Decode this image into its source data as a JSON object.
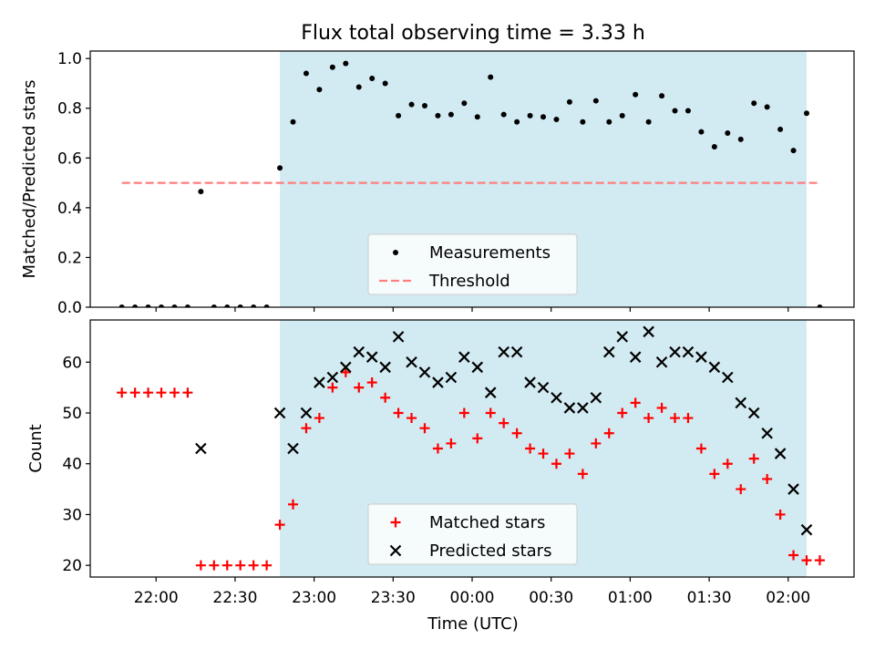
{
  "title": "Flux total observing time = 3.33 h",
  "colors": {
    "span": "#add8e6",
    "measurement": "#000000",
    "threshold": "#ff7f7f",
    "matched": "#ff0000",
    "predicted": "#000000"
  },
  "x_axis": {
    "label": "Time (UTC)",
    "ticks": [
      {
        "t": "2000-01-01T22:00",
        "label": "22:00"
      },
      {
        "t": "2000-01-01T22:30",
        "label": "22:30"
      },
      {
        "t": "2000-01-01T23:00",
        "label": "23:00"
      },
      {
        "t": "2000-01-01T23:30",
        "label": "23:30"
      },
      {
        "t": "2000-01-02T00:00",
        "label": "00:00"
      },
      {
        "t": "2000-01-02T00:30",
        "label": "00:30"
      },
      {
        "t": "2000-01-02T01:00",
        "label": "01:00"
      },
      {
        "t": "2000-01-02T01:30",
        "label": "01:30"
      },
      {
        "t": "2000-01-02T02:00",
        "label": "02:00"
      }
    ]
  },
  "chart_data": [
    {
      "type": "scatter",
      "ylabel": "Matched/Predicted stars",
      "xlim": [
        "2000-01-01T21:35",
        "2000-01-02T02:25"
      ],
      "ylim": [
        0,
        1.03
      ],
      "yticks": [
        {
          "v": 0.0,
          "label": "0.0"
        },
        {
          "v": 0.2,
          "label": "0.2"
        },
        {
          "v": 0.4,
          "label": "0.4"
        },
        {
          "v": 0.6,
          "label": "0.6"
        },
        {
          "v": 0.8,
          "label": "0.8"
        },
        {
          "v": 1.0,
          "label": "1.0"
        }
      ],
      "span": [
        "2000-01-01T22:47",
        "2000-01-02T02:07"
      ],
      "threshold": {
        "name": "Threshold",
        "y": 0.5,
        "x": [
          "2000-01-01T21:47",
          "2000-01-02T02:11"
        ]
      },
      "legend": {
        "position": "lower center",
        "entries": [
          "Measurements",
          "Threshold"
        ]
      },
      "series": [
        {
          "name": "Measurements",
          "x": [
            "2000-01-01T21:47",
            "2000-01-01T21:52",
            "2000-01-01T21:57",
            "2000-01-01T22:02",
            "2000-01-01T22:07",
            "2000-01-01T22:12",
            "2000-01-01T22:17",
            "2000-01-01T22:22",
            "2000-01-01T22:27",
            "2000-01-01T22:32",
            "2000-01-01T22:37",
            "2000-01-01T22:42",
            "2000-01-01T22:47",
            "2000-01-01T22:52",
            "2000-01-01T22:57",
            "2000-01-01T23:02",
            "2000-01-01T23:07",
            "2000-01-01T23:12",
            "2000-01-01T23:17",
            "2000-01-01T23:22",
            "2000-01-01T23:27",
            "2000-01-01T23:32",
            "2000-01-01T23:37",
            "2000-01-01T23:42",
            "2000-01-01T23:47",
            "2000-01-01T23:52",
            "2000-01-01T23:57",
            "2000-01-02T00:02",
            "2000-01-02T00:07",
            "2000-01-02T00:12",
            "2000-01-02T00:17",
            "2000-01-02T00:22",
            "2000-01-02T00:27",
            "2000-01-02T00:32",
            "2000-01-02T00:37",
            "2000-01-02T00:42",
            "2000-01-02T00:47",
            "2000-01-02T00:52",
            "2000-01-02T00:57",
            "2000-01-02T01:02",
            "2000-01-02T01:07",
            "2000-01-02T01:12",
            "2000-01-02T01:17",
            "2000-01-02T01:22",
            "2000-01-02T01:27",
            "2000-01-02T01:32",
            "2000-01-02T01:37",
            "2000-01-02T01:42",
            "2000-01-02T01:47",
            "2000-01-02T01:52",
            "2000-01-02T01:57",
            "2000-01-02T02:02",
            "2000-01-02T02:07",
            "2000-01-02T02:12"
          ],
          "y": [
            0,
            0,
            0,
            0,
            0,
            0,
            0.465,
            0,
            0,
            0,
            0,
            0,
            0.56,
            0.745,
            0.94,
            0.875,
            0.965,
            0.98,
            0.885,
            0.92,
            0.9,
            0.77,
            0.815,
            0.81,
            0.77,
            0.775,
            0.82,
            0.765,
            0.925,
            0.775,
            0.745,
            0.77,
            0.765,
            0.755,
            0.825,
            0.745,
            0.83,
            0.745,
            0.77,
            0.855,
            0.745,
            0.85,
            0.79,
            0.79,
            0.705,
            0.645,
            0.7,
            0.675,
            0.82,
            0.805,
            0.715,
            0.63,
            0.78,
            0
          ]
        }
      ]
    },
    {
      "type": "scatter",
      "ylabel": "Count",
      "xlabel": "Time (UTC)",
      "xlim": [
        "2000-01-01T21:35",
        "2000-01-02T02:25"
      ],
      "ylim": [
        17.7,
        68.3
      ],
      "yticks": [
        {
          "v": 20,
          "label": "20"
        },
        {
          "v": 30,
          "label": "30"
        },
        {
          "v": 40,
          "label": "40"
        },
        {
          "v": 50,
          "label": "50"
        },
        {
          "v": 60,
          "label": "60"
        }
      ],
      "span": [
        "2000-01-01T22:47",
        "2000-01-02T02:07"
      ],
      "legend": {
        "position": "lower center",
        "entries": [
          "Matched stars",
          "Predicted stars"
        ]
      },
      "series": [
        {
          "name": "Matched stars",
          "marker": "plus",
          "x": [
            "2000-01-01T21:47",
            "2000-01-01T21:52",
            "2000-01-01T21:57",
            "2000-01-01T22:02",
            "2000-01-01T22:07",
            "2000-01-01T22:12",
            "2000-01-01T22:17",
            "2000-01-01T22:22",
            "2000-01-01T22:27",
            "2000-01-01T22:32",
            "2000-01-01T22:37",
            "2000-01-01T22:42",
            "2000-01-01T22:47",
            "2000-01-01T22:52",
            "2000-01-01T22:57",
            "2000-01-01T23:02",
            "2000-01-01T23:07",
            "2000-01-01T23:12",
            "2000-01-01T23:17",
            "2000-01-01T23:22",
            "2000-01-01T23:27",
            "2000-01-01T23:32",
            "2000-01-01T23:37",
            "2000-01-01T23:42",
            "2000-01-01T23:47",
            "2000-01-01T23:52",
            "2000-01-01T23:57",
            "2000-01-02T00:02",
            "2000-01-02T00:07",
            "2000-01-02T00:12",
            "2000-01-02T00:17",
            "2000-01-02T00:22",
            "2000-01-02T00:27",
            "2000-01-02T00:32",
            "2000-01-02T00:37",
            "2000-01-02T00:42",
            "2000-01-02T00:47",
            "2000-01-02T00:52",
            "2000-01-02T00:57",
            "2000-01-02T01:02",
            "2000-01-02T01:07",
            "2000-01-02T01:12",
            "2000-01-02T01:17",
            "2000-01-02T01:22",
            "2000-01-02T01:27",
            "2000-01-02T01:32",
            "2000-01-02T01:37",
            "2000-01-02T01:42",
            "2000-01-02T01:47",
            "2000-01-02T01:52",
            "2000-01-02T01:57",
            "2000-01-02T02:02",
            "2000-01-02T02:07",
            "2000-01-02T02:12"
          ],
          "y": [
            54,
            54,
            54,
            54,
            54,
            54,
            20,
            20,
            20,
            20,
            20,
            20,
            28,
            32,
            47,
            49,
            55,
            58,
            55,
            56,
            53,
            50,
            49,
            47,
            43,
            44,
            50,
            45,
            50,
            48,
            46,
            43,
            42,
            40,
            42,
            38,
            44,
            46,
            50,
            52,
            49,
            51,
            49,
            49,
            43,
            38,
            40,
            35,
            41,
            37,
            30,
            22,
            21,
            21
          ]
        },
        {
          "name": "Predicted stars",
          "marker": "x",
          "x": [
            "2000-01-01T22:17",
            "2000-01-01T22:47",
            "2000-01-01T22:52",
            "2000-01-01T22:57",
            "2000-01-01T23:02",
            "2000-01-01T23:07",
            "2000-01-01T23:12",
            "2000-01-01T23:17",
            "2000-01-01T23:22",
            "2000-01-01T23:27",
            "2000-01-01T23:32",
            "2000-01-01T23:37",
            "2000-01-01T23:42",
            "2000-01-01T23:47",
            "2000-01-01T23:52",
            "2000-01-01T23:57",
            "2000-01-02T00:02",
            "2000-01-02T00:07",
            "2000-01-02T00:12",
            "2000-01-02T00:17",
            "2000-01-02T00:22",
            "2000-01-02T00:27",
            "2000-01-02T00:32",
            "2000-01-02T00:37",
            "2000-01-02T00:42",
            "2000-01-02T00:47",
            "2000-01-02T00:52",
            "2000-01-02T00:57",
            "2000-01-02T01:02",
            "2000-01-02T01:07",
            "2000-01-02T01:12",
            "2000-01-02T01:17",
            "2000-01-02T01:22",
            "2000-01-02T01:27",
            "2000-01-02T01:32",
            "2000-01-02T01:37",
            "2000-01-02T01:42",
            "2000-01-02T01:47",
            "2000-01-02T01:52",
            "2000-01-02T01:57",
            "2000-01-02T02:02",
            "2000-01-02T02:07"
          ],
          "y": [
            43,
            50,
            43,
            50,
            56,
            57,
            59,
            62,
            61,
            59,
            65,
            60,
            58,
            56,
            57,
            61,
            59,
            54,
            62,
            62,
            56,
            55,
            53,
            51,
            51,
            53,
            62,
            65,
            61,
            66,
            60,
            62,
            62,
            61,
            59,
            57,
            52,
            50,
            46,
            42,
            35,
            27
          ]
        }
      ]
    }
  ]
}
